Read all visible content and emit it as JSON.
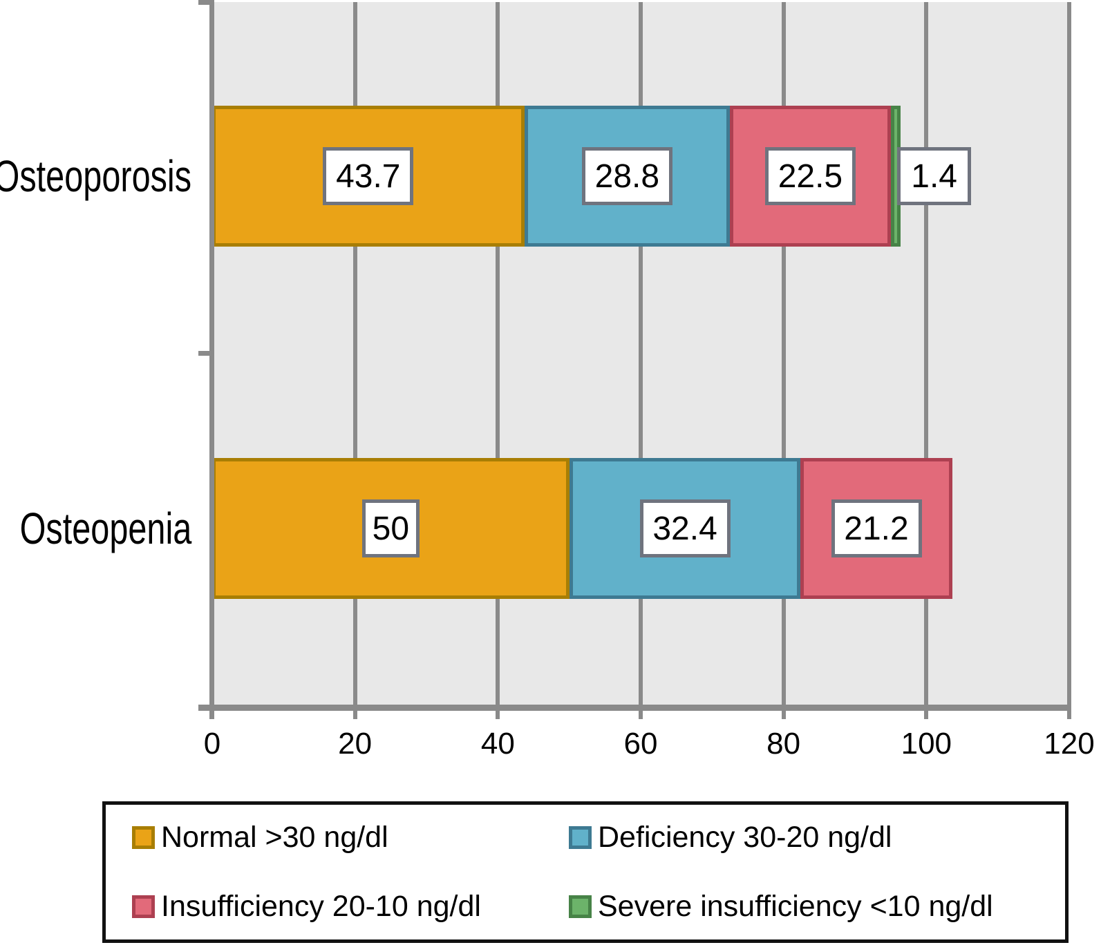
{
  "chart_data": {
    "type": "bar",
    "orientation": "horizontal",
    "stacked": true,
    "categories": [
      "Osteoporosis",
      "Osteopenia"
    ],
    "series": [
      {
        "name": "Normal >30 ng/dl",
        "fill": "#EAA317",
        "border": "#A87E04",
        "values": [
          43.7,
          50
        ],
        "labels": [
          "43.7",
          "50"
        ]
      },
      {
        "name": "Deficiency 30-20 ng/dl",
        "fill": "#61B1CA",
        "border": "#3E7A92",
        "values": [
          28.8,
          32.4
        ],
        "labels": [
          "28.8",
          "32.4"
        ]
      },
      {
        "name": "Insufficiency 20-10 ng/dl",
        "fill": "#E26A7A",
        "border": "#AD4051",
        "values": [
          22.5,
          21.2
        ],
        "labels": [
          "22.5",
          "21.2"
        ]
      },
      {
        "name": "Severe insufficiency <10 ng/dl",
        "fill": "#6CB36A",
        "border": "#478347",
        "values": [
          1.4,
          null
        ],
        "labels": [
          "1.4",
          null
        ]
      }
    ],
    "xlim": [
      0,
      120
    ],
    "xticks": [
      0,
      20,
      40,
      60,
      80,
      100,
      120
    ],
    "grid": true,
    "legend_position": "bottom",
    "plot_background": "#E8E8E8"
  },
  "axis": {
    "x_tick_labels": [
      "0",
      "20",
      "40",
      "60",
      "80",
      "100",
      "120"
    ]
  },
  "legend": {
    "items": [
      {
        "label": "Normal >30 ng/dl",
        "fill": "#EAA317",
        "border": "#A87E04"
      },
      {
        "label": "Deficiency 30-20 ng/dl",
        "fill": "#61B1CA",
        "border": "#3E7A92"
      },
      {
        "label": "Insufficiency 20-10 ng/dl",
        "fill": "#E26A7A",
        "border": "#AD4051"
      },
      {
        "label": "Severe insufficiency <10 ng/dl",
        "fill": "#6CB36A",
        "border": "#478347"
      }
    ]
  }
}
